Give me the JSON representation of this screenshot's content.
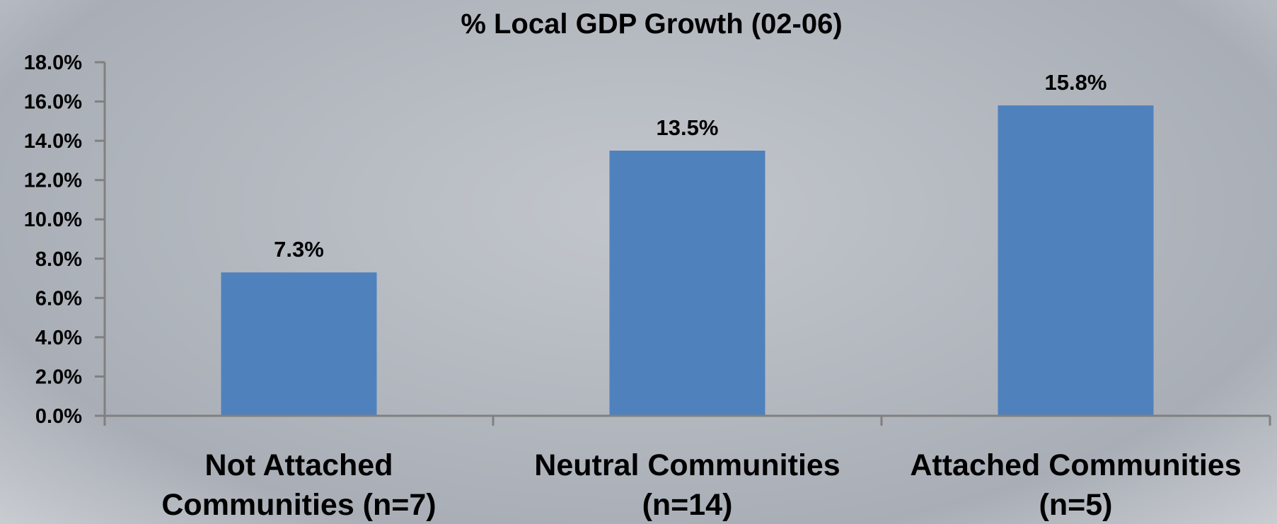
{
  "chart_data": {
    "type": "bar",
    "title": "% Local GDP Growth (02-06)",
    "categories": [
      [
        "Not Attached",
        "Communities (n=7)"
      ],
      [
        "Neutral Communities",
        "(n=14)"
      ],
      [
        "Attached Communities",
        "(n=5)"
      ]
    ],
    "values": [
      7.3,
      13.5,
      15.8
    ],
    "data_labels": [
      "7.3%",
      "13.5%",
      "15.8%"
    ],
    "ylim": [
      0,
      18
    ],
    "yticks": [
      0,
      2,
      4,
      6,
      8,
      10,
      12,
      14,
      16,
      18
    ],
    "ytick_labels": [
      "0.0%",
      "2.0%",
      "4.0%",
      "6.0%",
      "8.0%",
      "10.0%",
      "12.0%",
      "14.0%",
      "16.0%",
      "18.0%"
    ],
    "xlabel": "",
    "ylabel": "",
    "grid": false,
    "legend": "none",
    "colors": {
      "bar": "#4f81bd",
      "axis": "#808080"
    }
  }
}
